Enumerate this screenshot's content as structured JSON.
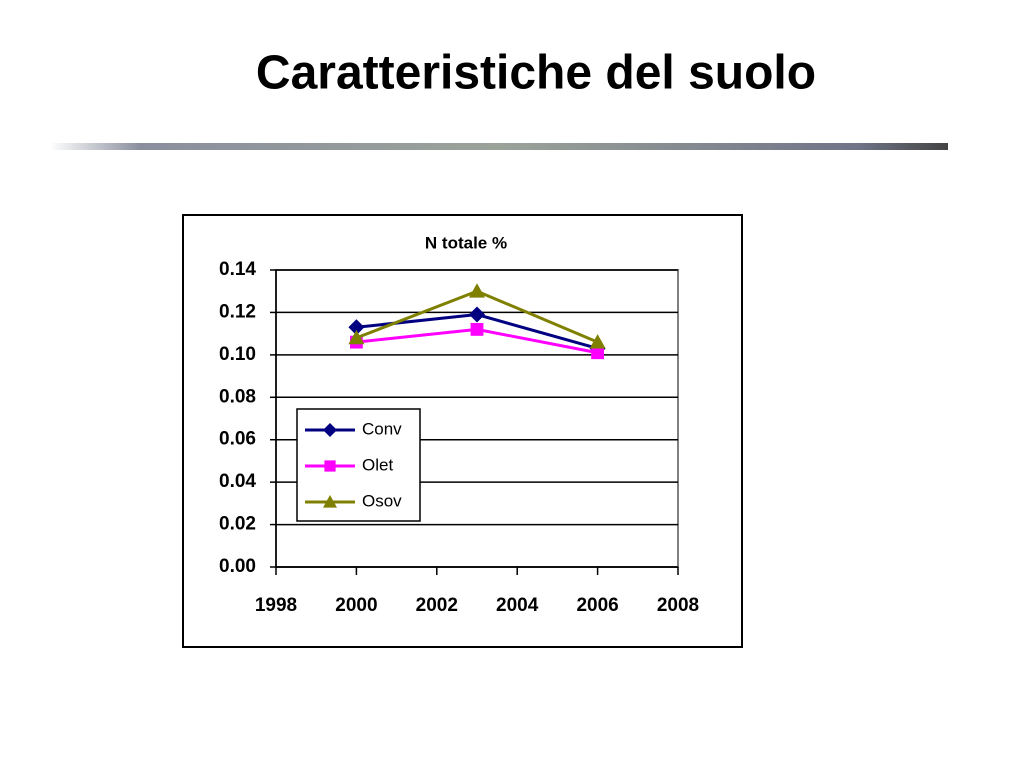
{
  "slide": {
    "title": "Caratteristiche del suolo"
  },
  "chart_data": {
    "type": "line",
    "title": "N totale %",
    "x": [
      2000,
      2003,
      2006
    ],
    "series": [
      {
        "name": "Conv",
        "color": "#000080",
        "marker": "diamond",
        "values": [
          0.113,
          0.119,
          0.103
        ]
      },
      {
        "name": "Olet",
        "color": "#ff00ff",
        "marker": "square",
        "values": [
          0.106,
          0.112,
          0.101
        ]
      },
      {
        "name": "Osov",
        "color": "#808000",
        "marker": "triangle",
        "values": [
          0.108,
          0.13,
          0.106
        ]
      }
    ],
    "xlim": [
      1998,
      2008
    ],
    "xticks": [
      1998,
      2000,
      2002,
      2004,
      2006,
      2008
    ],
    "ylim": [
      0,
      0.14
    ],
    "yticks": [
      {
        "value": 0,
        "label": "0.00"
      },
      0.02,
      0.04,
      0.06,
      0.08,
      {
        "value": 0.1,
        "label": "0.10"
      },
      0.12,
      0.14
    ],
    "grid": true,
    "legend": "center left"
  }
}
